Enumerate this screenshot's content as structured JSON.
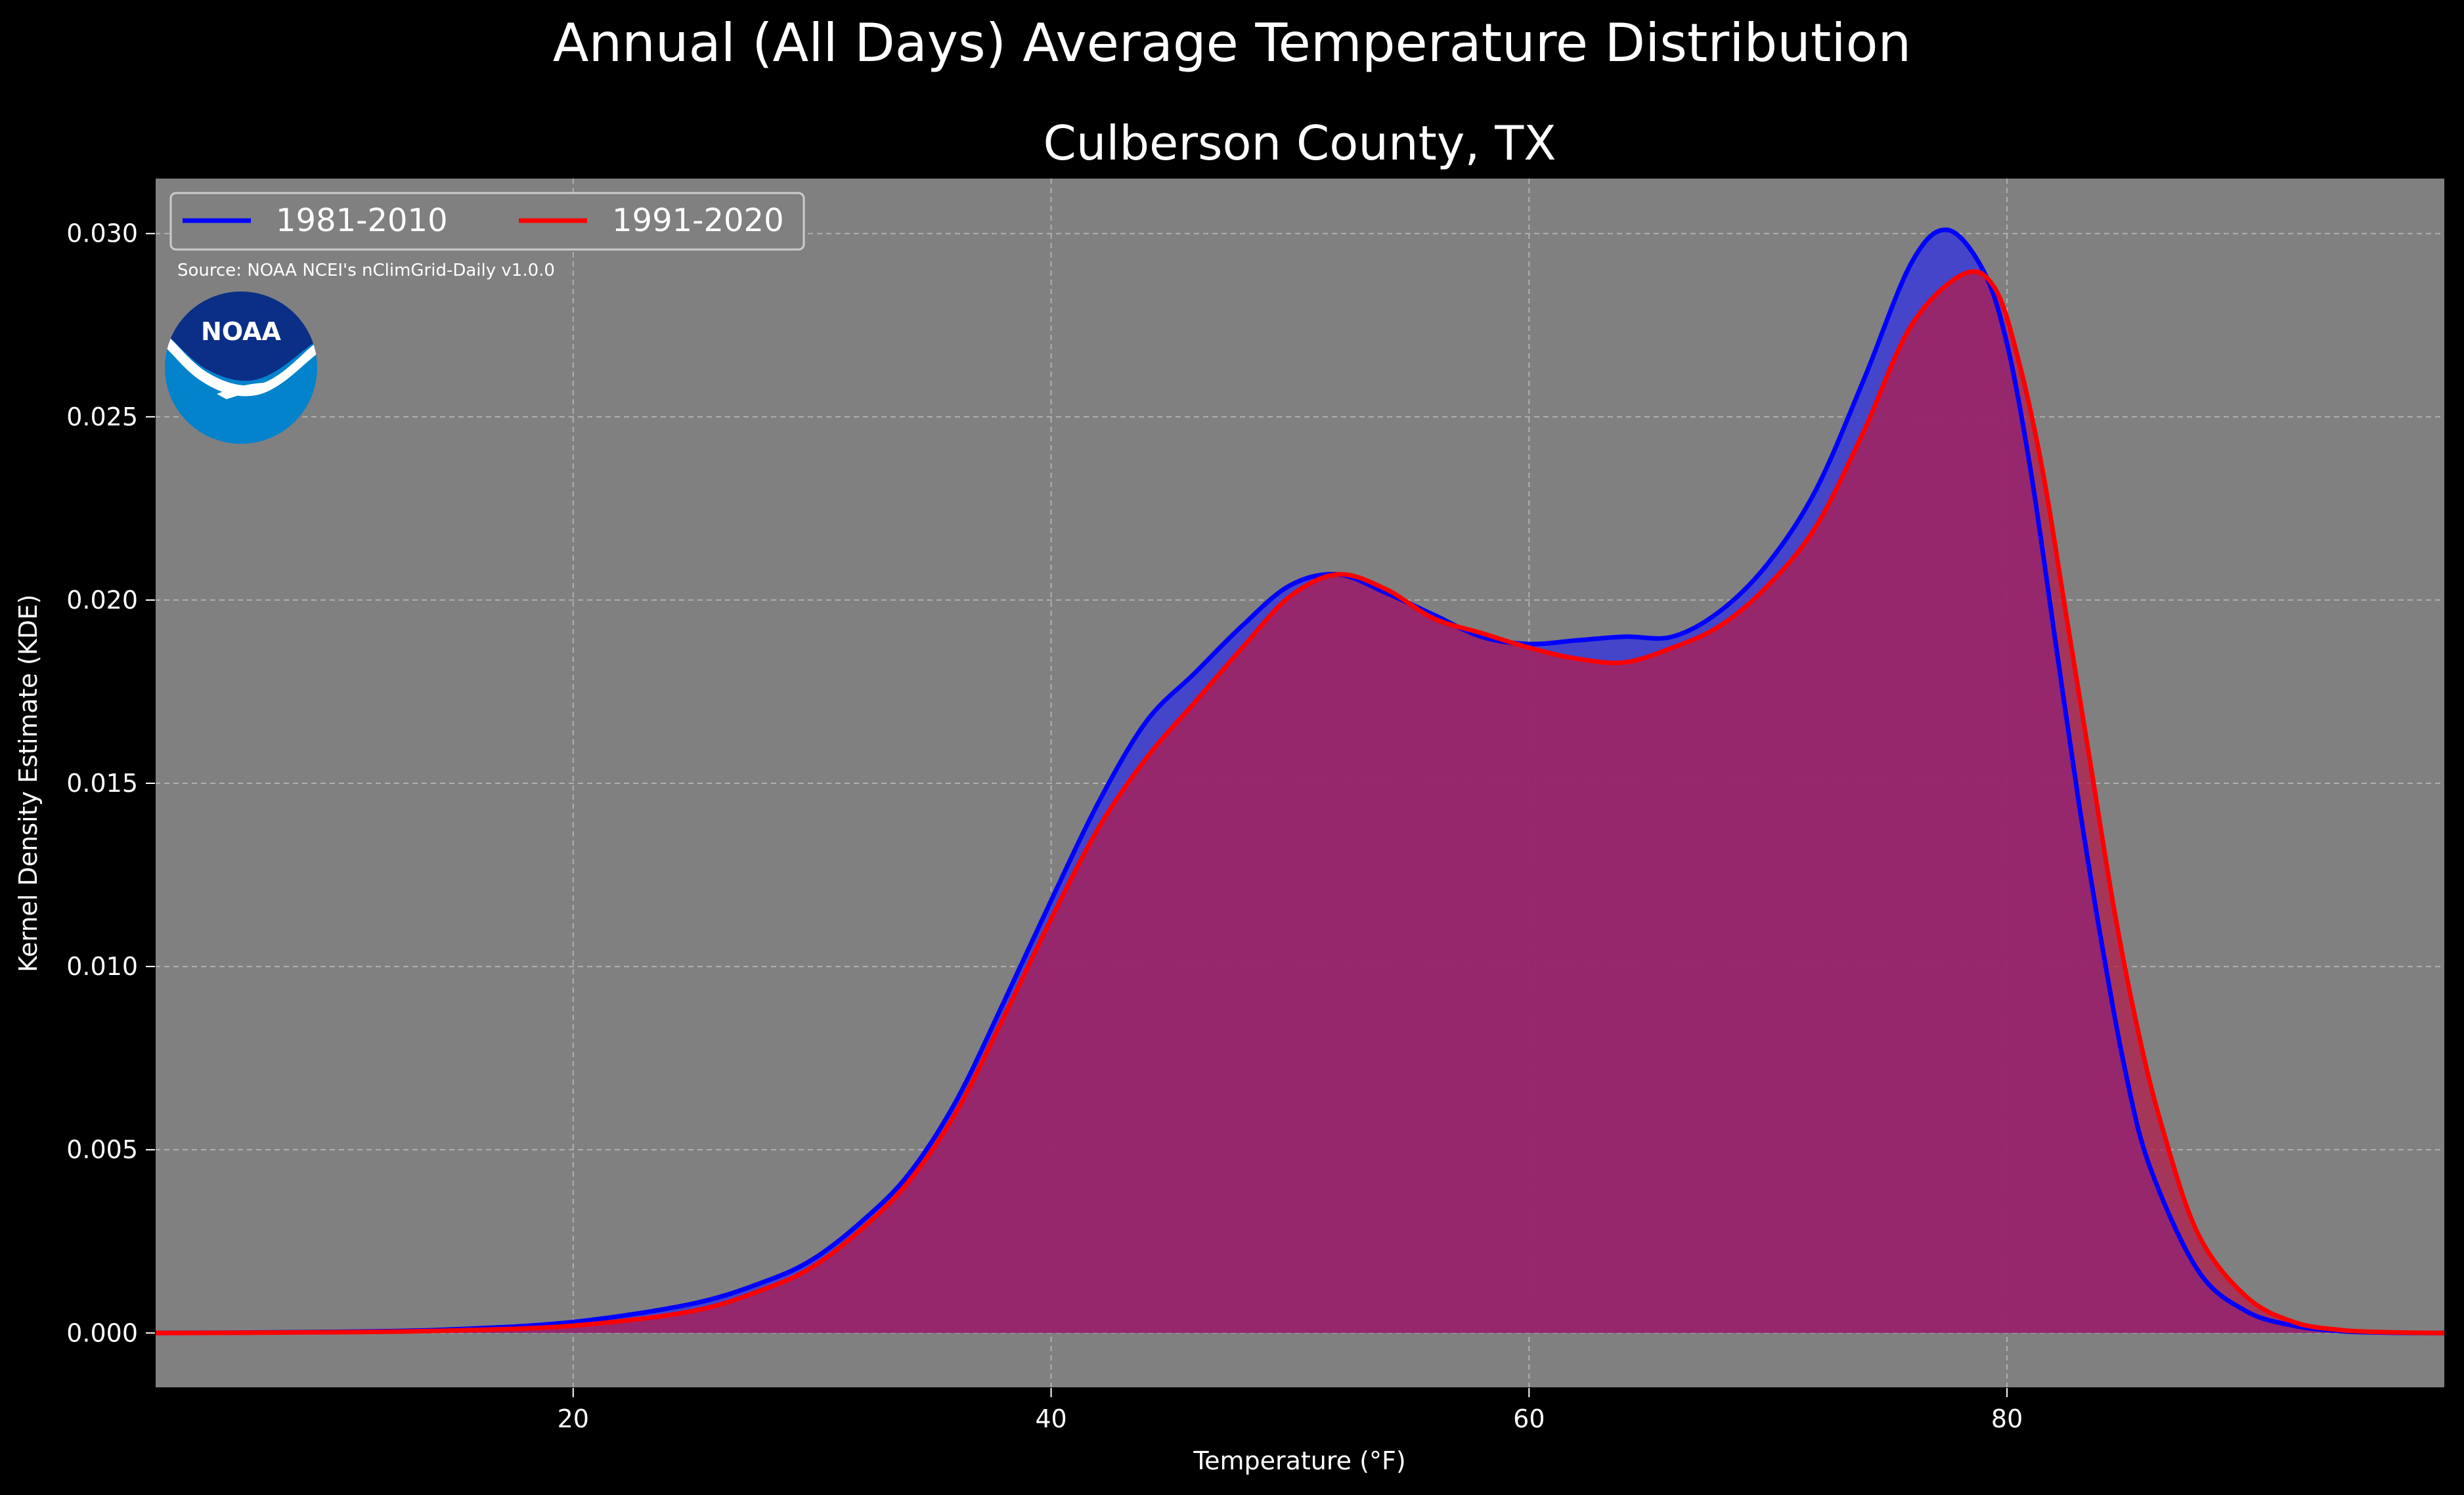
{
  "suptitle": "Annual (All Days) Average Temperature Distribution",
  "title": "Culberson County, TX",
  "source": "Source: NOAA NCEI's nClimGrid-Daily v1.0.0",
  "logo_text": "NOAA",
  "colors": {
    "background": "#000000",
    "plot_bg": "#808080",
    "series_1981": "#0000ff",
    "series_1991": "#ff0000",
    "fill_1981": "#3b3bd6",
    "fill_1991": "#b21e4e",
    "logo_dark": "#0b2f86",
    "logo_light": "#0283cc"
  },
  "chart_data": {
    "type": "area",
    "title": "Culberson County, TX",
    "xlabel": "Temperature ($^\\circ$F)",
    "xlabel_display": "Temperature (°F)",
    "ylabel": "Kernel Density Estimate (KDE)",
    "xlim": [
      2.5,
      98.3
    ],
    "ylim": [
      -0.0015,
      0.0315
    ],
    "xticks": [
      20,
      40,
      60,
      80
    ],
    "xtick_labels": [
      "20",
      "40",
      "60",
      "80"
    ],
    "yticks": [
      0.0,
      0.005,
      0.01,
      0.015,
      0.02,
      0.025,
      0.03
    ],
    "ytick_labels": [
      "0.000",
      "0.005",
      "0.010",
      "0.015",
      "0.020",
      "0.025",
      "0.030"
    ],
    "grid": true,
    "legend_position": "top-left",
    "series": [
      {
        "name": "1981-2010",
        "x": [
          2.5,
          10,
          15,
          20,
          25,
          28,
          30,
          32,
          34,
          36,
          38,
          40,
          42,
          44,
          46,
          48,
          50,
          52,
          54,
          56,
          58,
          60,
          62,
          64,
          66,
          68,
          70,
          72,
          74,
          76,
          77.5,
          79,
          80,
          81,
          82,
          83,
          84,
          85,
          86,
          88,
          90,
          92,
          94,
          96,
          98.3
        ],
        "y": [
          0.0,
          3e-05,
          0.0001,
          0.0003,
          0.0008,
          0.0014,
          0.002,
          0.003,
          0.0043,
          0.0063,
          0.009,
          0.0118,
          0.0145,
          0.0167,
          0.018,
          0.0193,
          0.0204,
          0.0207,
          0.0202,
          0.0196,
          0.019,
          0.0188,
          0.0189,
          0.019,
          0.019,
          0.0197,
          0.021,
          0.023,
          0.026,
          0.0292,
          0.0301,
          0.029,
          0.027,
          0.0235,
          0.019,
          0.0145,
          0.0105,
          0.007,
          0.0045,
          0.0017,
          0.0006,
          0.0002,
          5e-05,
          1e-05,
          0.0
        ]
      },
      {
        "name": "1991-2020",
        "x": [
          2.5,
          10,
          15,
          20,
          25,
          28,
          30,
          32,
          34,
          36,
          38,
          40,
          42,
          44,
          46,
          48,
          50,
          52,
          54,
          56,
          58,
          60,
          62,
          64,
          66,
          68,
          70,
          72,
          74,
          76,
          78.2,
          79.5,
          80.5,
          81.5,
          82.5,
          83.5,
          84.5,
          85.5,
          86.5,
          88,
          90,
          92,
          94,
          96,
          98.3
        ],
        "y": [
          0.0,
          2e-05,
          7e-05,
          0.0002,
          0.0006,
          0.0012,
          0.0018,
          0.0028,
          0.0041,
          0.006,
          0.0086,
          0.0113,
          0.0138,
          0.0157,
          0.0172,
          0.0187,
          0.0201,
          0.0207,
          0.0203,
          0.0195,
          0.0191,
          0.0187,
          0.0184,
          0.0183,
          0.0187,
          0.0193,
          0.0204,
          0.022,
          0.0246,
          0.0275,
          0.0289,
          0.0285,
          0.0265,
          0.0235,
          0.0195,
          0.0155,
          0.0115,
          0.0082,
          0.0056,
          0.0027,
          0.001,
          0.0003,
          8e-05,
          2e-05,
          0.0
        ]
      }
    ]
  }
}
